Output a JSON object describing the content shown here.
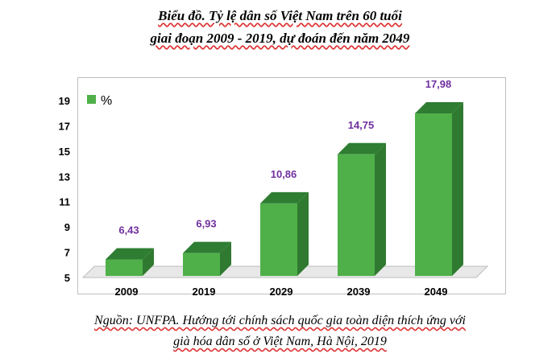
{
  "title": {
    "line1": "Biểu đồ. Tỷ lệ dân số Việt Nam trên 60 tuổi",
    "line2": "giai đoạn 2009 - 2019, dự đoán đến năm 2049"
  },
  "source": {
    "line1": "Nguồn: UNFPA. Hướng tới chính sách quốc gia toàn diện thích ứng với",
    "line2": "già hóa dân số ở Việt Nam, Hà Nội, 2019"
  },
  "colors": {
    "bar_front": "#4fb04a",
    "bar_top": "#2e7d32",
    "bar_side": "#2f7a30",
    "floor": "#e8e8e8",
    "value_label": "#7030a0"
  },
  "chart_data": {
    "type": "bar",
    "categories": [
      "2009",
      "2019",
      "2029",
      "2039",
      "2049"
    ],
    "series": [
      {
        "name": "%",
        "values": [
          6.43,
          6.93,
          10.86,
          14.75,
          17.98
        ]
      }
    ],
    "value_labels": [
      "6,43",
      "6,93",
      "10,86",
      "14,75",
      "17,98"
    ],
    "y_ticks": [
      "5",
      "7",
      "9",
      "11",
      "13",
      "15",
      "17",
      "19"
    ],
    "ylim": [
      5,
      19
    ],
    "grid": false,
    "legend": "top-left",
    "style": "3d"
  }
}
